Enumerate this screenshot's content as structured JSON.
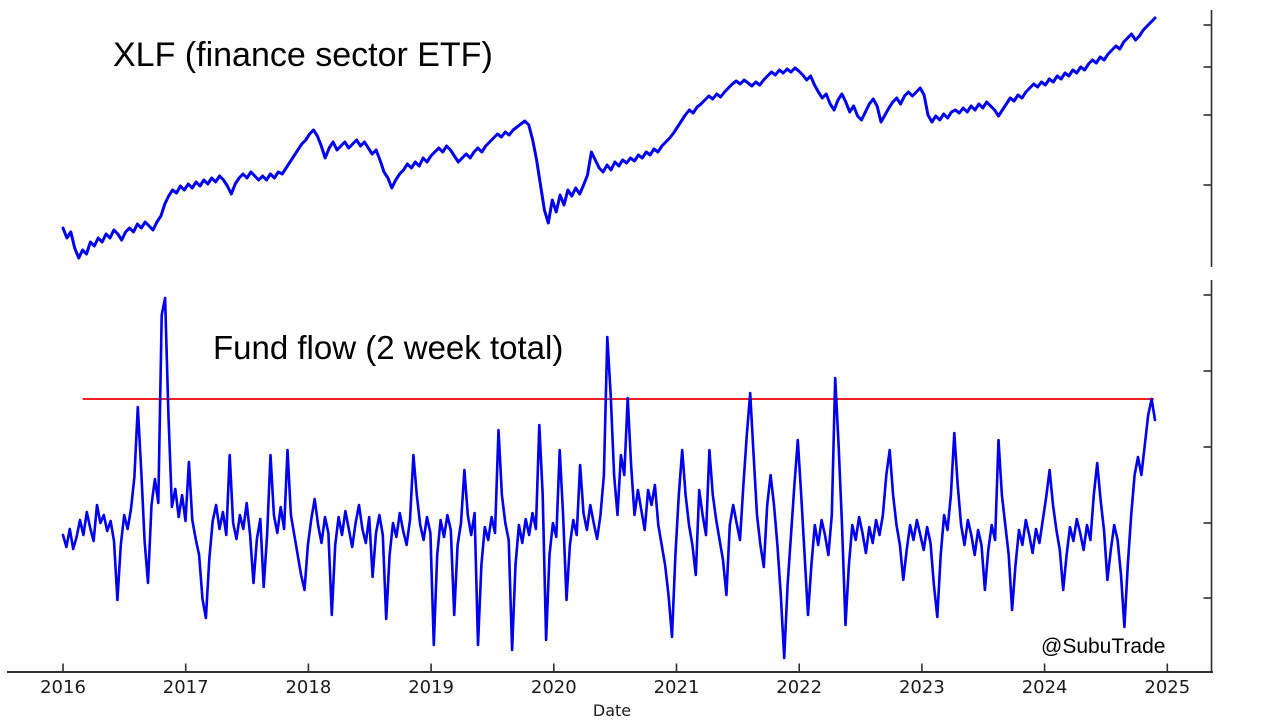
{
  "watermark": "@SubuTrade",
  "x_axis": {
    "label": "Date",
    "tick_years": [
      "2016",
      "2017",
      "2018",
      "2019",
      "2020",
      "2021",
      "2022",
      "2023",
      "2024",
      "2025"
    ],
    "range": [
      2016.0,
      2025.37
    ]
  },
  "colors": {
    "line_blue": "#0000ee",
    "threshold_red": "#ee0000",
    "axis": "#2e2e2e",
    "tick_text": "#1a1a1a",
    "title_text": "#000000"
  },
  "chart_data": [
    {
      "type": "line",
      "panel": "top",
      "title": "XLF (finance sector ETF)",
      "xlabel": "",
      "ylabel": "",
      "y_axis_labeled": false,
      "y_unit": "unlabeled (price, arbitrary units)",
      "ylim": [
        0,
        260
      ],
      "series": [
        {
          "name": "xlf-price-line",
          "color": "#0000ee",
          "x_start": 2016.0,
          "x_end": 2024.9,
          "values": [
            42,
            32,
            38,
            22,
            12,
            20,
            16,
            28,
            24,
            32,
            28,
            36,
            32,
            40,
            36,
            30,
            38,
            42,
            38,
            46,
            42,
            48,
            44,
            40,
            48,
            54,
            66,
            74,
            80,
            77,
            84,
            80,
            86,
            82,
            88,
            84,
            90,
            86,
            92,
            88,
            94,
            90,
            84,
            76,
            86,
            92,
            96,
            92,
            98,
            94,
            90,
            94,
            90,
            96,
            92,
            98,
            96,
            102,
            108,
            114,
            120,
            126,
            130,
            136,
            140,
            134,
            124,
            112,
            122,
            128,
            120,
            124,
            128,
            122,
            126,
            130,
            124,
            128,
            122,
            116,
            120,
            110,
            98,
            92,
            82,
            90,
            96,
            100,
            106,
            102,
            108,
            104,
            112,
            108,
            114,
            118,
            122,
            118,
            124,
            120,
            114,
            108,
            112,
            116,
            112,
            118,
            122,
            118,
            124,
            128,
            132,
            136,
            133,
            138,
            135,
            140,
            143,
            146,
            149,
            145,
            130,
            110,
            85,
            60,
            47,
            70,
            58,
            75,
            65,
            80,
            74,
            82,
            76,
            85,
            95,
            118,
            110,
            102,
            98,
            105,
            100,
            108,
            104,
            110,
            107,
            112,
            109,
            115,
            112,
            118,
            115,
            121,
            118,
            124,
            128,
            132,
            137,
            143,
            149,
            155,
            160,
            157,
            163,
            166,
            170,
            174,
            171,
            176,
            173,
            178,
            182,
            186,
            189,
            186,
            190,
            187,
            184,
            188,
            185,
            190,
            194,
            198,
            195,
            200,
            197,
            201,
            198,
            202,
            199,
            195,
            190,
            194,
            185,
            178,
            172,
            176,
            166,
            160,
            170,
            176,
            168,
            158,
            164,
            154,
            150,
            158,
            166,
            171,
            164,
            148,
            155,
            162,
            168,
            172,
            166,
            174,
            178,
            174,
            178,
            182,
            175,
            155,
            148,
            154,
            150,
            156,
            152,
            158,
            160,
            157,
            162,
            158,
            164,
            160,
            166,
            162,
            168,
            164,
            160,
            154,
            160,
            166,
            172,
            169,
            175,
            172,
            178,
            182,
            186,
            183,
            188,
            185,
            191,
            188,
            194,
            191,
            197,
            194,
            200,
            197,
            203,
            200,
            206,
            210,
            207,
            213,
            210,
            216,
            220,
            224,
            221,
            228,
            232,
            236,
            230,
            234,
            240,
            244,
            248,
            252
          ]
        }
      ]
    },
    {
      "type": "line",
      "panel": "bottom",
      "title": "Fund flow (2 week total)",
      "xlabel": "Date",
      "ylabel": "",
      "y_axis_labeled": false,
      "y_unit": "unlabeled (net flow, arbitrary units)",
      "ylim": [
        0,
        380
      ],
      "series": [
        {
          "name": "fund-flow-line",
          "color": "#0000ee",
          "x_start": 2016.0,
          "x_end": 2024.9,
          "values": [
            140,
            128,
            146,
            126,
            138,
            155,
            140,
            163,
            147,
            134,
            170,
            152,
            160,
            144,
            154,
            134,
            75,
            130,
            160,
            146,
            166,
            198,
            268,
            205,
            134,
            92,
            170,
            196,
            172,
            360,
            377,
            258,
            168,
            186,
            158,
            180,
            154,
            213,
            155,
            136,
            120,
            76,
            57,
            116,
            154,
            170,
            146,
            163,
            140,
            220,
            152,
            136,
            160,
            146,
            172,
            140,
            92,
            136,
            156,
            88,
            140,
            220,
            160,
            142,
            168,
            146,
            225,
            160,
            140,
            120,
            100,
            85,
            130,
            156,
            176,
            150,
            132,
            158,
            142,
            60,
            130,
            158,
            140,
            164,
            146,
            128,
            152,
            170,
            146,
            132,
            158,
            98,
            142,
            160,
            140,
            56,
            120,
            152,
            138,
            162,
            144,
            130,
            155,
            220,
            180,
            150,
            135,
            158,
            142,
            30,
            120,
            155,
            138,
            160,
            145,
            60,
            130,
            152,
            205,
            160,
            140,
            162,
            30,
            110,
            148,
            135,
            158,
            142,
            245,
            180,
            152,
            135,
            25,
            110,
            150,
            132,
            156,
            140,
            162,
            146,
            250,
            180,
            35,
            120,
            152,
            138,
            225,
            160,
            75,
            130,
            155,
            140,
            210,
            162,
            145,
            170,
            152,
            136,
            160,
            200,
            338,
            280,
            200,
            160,
            220,
            200,
            277,
            210,
            160,
            185,
            165,
            145,
            185,
            170,
            190,
            150,
            130,
            110,
            80,
            38,
            120,
            180,
            225,
            180,
            150,
            130,
            100,
            185,
            160,
            140,
            225,
            180,
            155,
            135,
            115,
            80,
            150,
            170,
            152,
            135,
            190,
            240,
            282,
            220,
            160,
            130,
            108,
            170,
            200,
            170,
            130,
            80,
            17,
            90,
            140,
            190,
            235,
            180,
            120,
            60,
            110,
            150,
            130,
            155,
            140,
            120,
            160,
            297,
            230,
            150,
            50,
            110,
            150,
            135,
            158,
            142,
            122,
            148,
            132,
            155,
            140,
            160,
            200,
            225,
            180,
            150,
            130,
            95,
            125,
            150,
            135,
            155,
            140,
            125,
            148,
            132,
            90,
            58,
            120,
            160,
            145,
            180,
            242,
            190,
            150,
            130,
            155,
            140,
            120,
            145,
            130,
            85,
            125,
            150,
            135,
            235,
            180,
            150,
            120,
            65,
            110,
            145,
            130,
            155,
            140,
            122,
            146,
            132,
            155,
            178,
            205,
            170,
            145,
            125,
            85,
            120,
            148,
            134,
            156,
            142,
            125,
            150,
            135,
            180,
            212,
            175,
            145,
            95,
            125,
            150,
            135,
            100,
            48,
            110,
            160,
            200,
            218,
            200,
            230,
            260,
            276,
            255
          ]
        }
      ],
      "threshold_line": {
        "name": "flow-threshold-line",
        "color": "#ee0000",
        "value": 276,
        "x_start": 2016.16,
        "x_end": 2024.89
      }
    }
  ]
}
